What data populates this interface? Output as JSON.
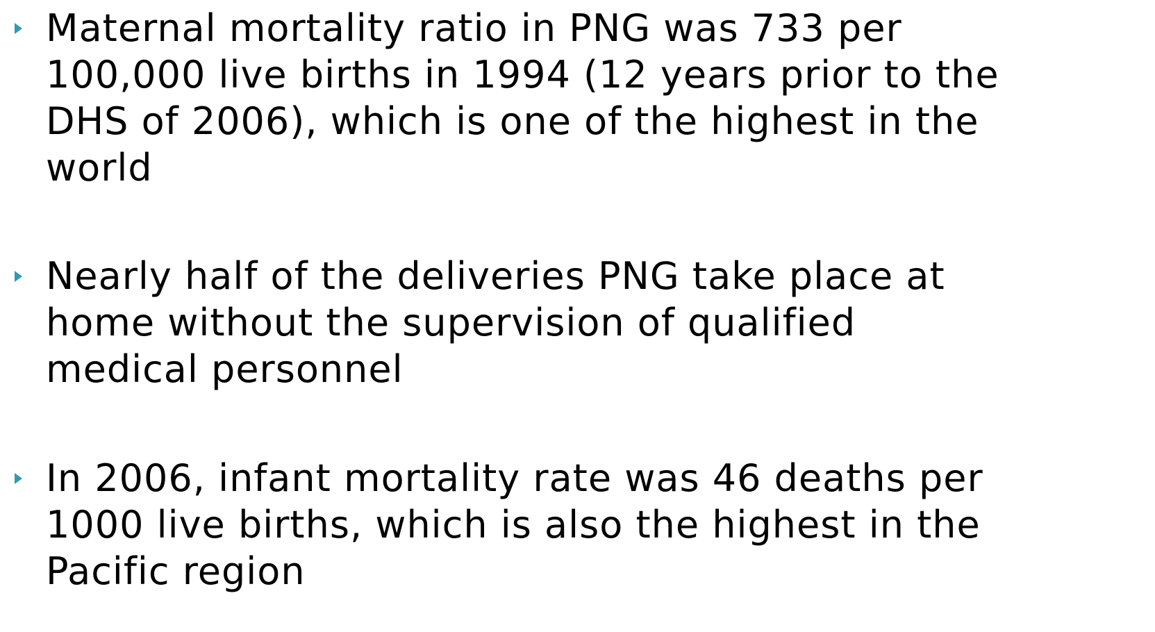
{
  "bullets": [
    {
      "lines": [
        "Maternal mortality ratio in PNG was 733 per",
        "100,000 live births in 1994 (12 years prior to the",
        "DHS of 2006), which is one of the highest in the",
        "world"
      ]
    },
    {
      "lines": [
        "Nearly half of the deliveries PNG take place at",
        "home without the supervision of qualified",
        "medical personnel"
      ]
    },
    {
      "lines": [
        "In 2006, infant mortality rate was 46 deaths per",
        "1000 live births, which is also the highest in the",
        "Pacific region"
      ]
    }
  ]
}
